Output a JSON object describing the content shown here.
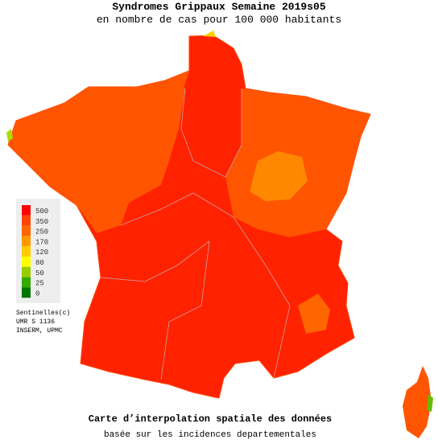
{
  "header": {
    "title": "Syndromes Grippaux Semaine 2019s05",
    "subtitle": "en nombre de cas pour 100 000 habitants"
  },
  "legend": [
    {
      "value": 500,
      "color": "#ff0000"
    },
    {
      "value": 350,
      "color": "#ff4400"
    },
    {
      "value": 250,
      "color": "#ff6600"
    },
    {
      "value": 170,
      "color": "#ff9900"
    },
    {
      "value": 120,
      "color": "#ffcc00"
    },
    {
      "value": 80,
      "color": "#ffff00"
    },
    {
      "value": 50,
      "color": "#99cc00"
    },
    {
      "value": 25,
      "color": "#33aa00"
    },
    {
      "value": 0,
      "color": "#007700"
    }
  ],
  "credits": [
    "Sentinelles(c)",
    "UMR S 1136",
    "INSERM, UPMC"
  ],
  "footer": {
    "title": "Carte d’interpolation spatiale des données",
    "subtitle": "basée sur les incidences departementales"
  }
}
